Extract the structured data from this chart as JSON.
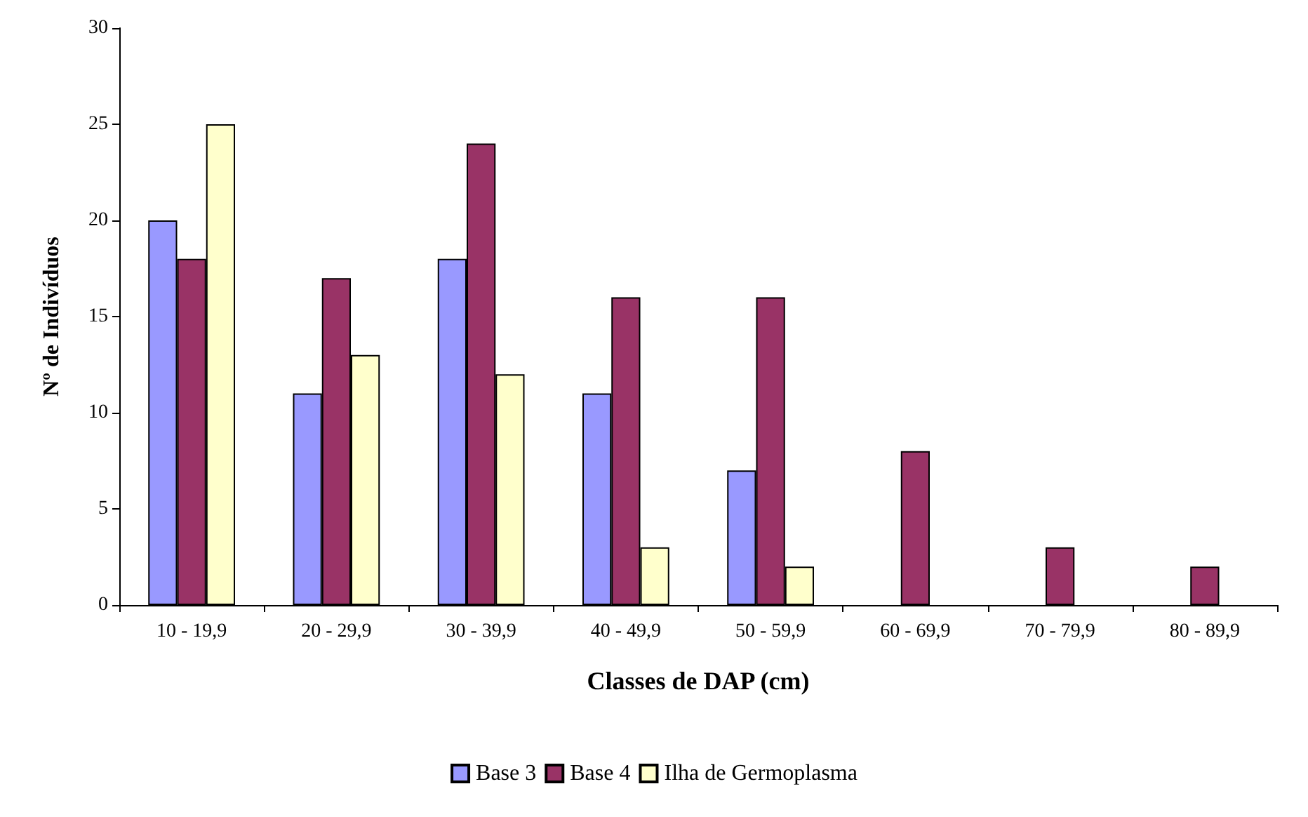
{
  "chart_data": {
    "type": "bar",
    "xlabel": "Classes de DAP (cm)",
    "ylabel": "Nº de Indivíduos",
    "categories": [
      "10 - 19,9",
      "20 - 29,9",
      "30 - 39,9",
      "40 - 49,9",
      "50 - 59,9",
      "60 - 69,9",
      "70 - 79,9",
      "80 - 89,9"
    ],
    "series": [
      {
        "name": "Base 3",
        "color": "#9999ff",
        "values": [
          20,
          11,
          18,
          11,
          7,
          null,
          null,
          null
        ]
      },
      {
        "name": "Base 4",
        "color": "#993366",
        "values": [
          18,
          17,
          24,
          16,
          16,
          8,
          3,
          2
        ]
      },
      {
        "name": "Ilha de Germoplasma",
        "color": "#ffffcc",
        "values": [
          25,
          13,
          12,
          3,
          2,
          null,
          null,
          null
        ]
      }
    ],
    "ylim": [
      0,
      30
    ],
    "yticks": [
      0,
      5,
      10,
      15,
      20,
      25,
      30
    ],
    "grid": false,
    "legend": "bottom"
  }
}
